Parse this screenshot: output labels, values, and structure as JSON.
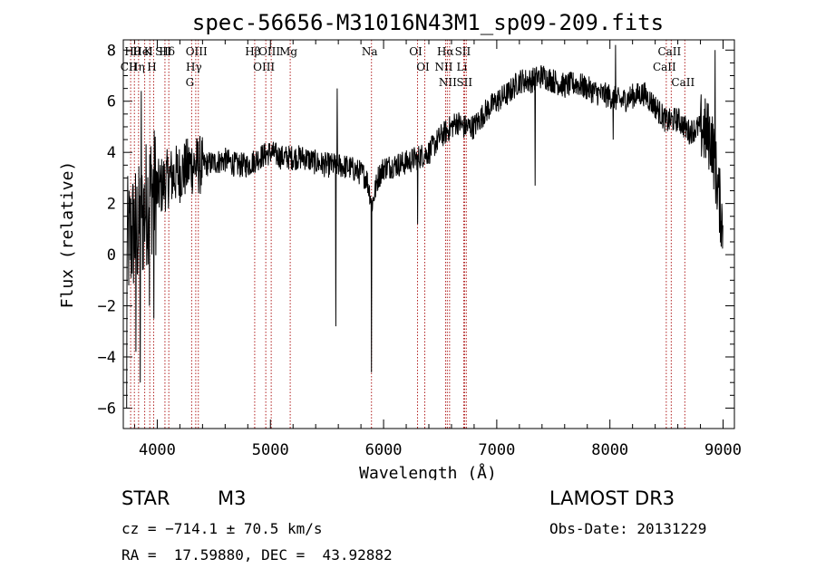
{
  "chart_data": {
    "type": "line",
    "title": "spec-56656-M31016N43M1_sp09-209.fits",
    "xlabel": "Wavelength (Å)",
    "ylabel": "Flux (relative)",
    "xlim": [
      3700,
      9100
    ],
    "ylim": [
      -6.8,
      8.4
    ],
    "x_ticks": [
      4000,
      5000,
      6000,
      7000,
      8000,
      9000
    ],
    "y_ticks": [
      -6,
      -4,
      -2,
      0,
      2,
      4,
      6,
      8
    ],
    "line_color": "#000000",
    "marker_color": "#b22222",
    "spectrum_anchors": {
      "x": [
        3700,
        3750,
        3800,
        3850,
        3900,
        3950,
        4000,
        4100,
        4200,
        4300,
        4400,
        4500,
        4600,
        4700,
        4800,
        4900,
        5000,
        5100,
        5200,
        5300,
        5400,
        5500,
        5600,
        5700,
        5800,
        5850,
        5900,
        5950,
        6000,
        6100,
        6200,
        6300,
        6400,
        6500,
        6550,
        6600,
        6650,
        6700,
        6800,
        6900,
        7000,
        7100,
        7200,
        7300,
        7400,
        7500,
        7600,
        7700,
        7800,
        7900,
        8000,
        8100,
        8200,
        8300,
        8400,
        8500,
        8600,
        8700,
        8800,
        8900,
        9000
      ],
      "y": [
        0.5,
        0.5,
        1.0,
        1.0,
        2.0,
        2.5,
        2.5,
        3.0,
        3.2,
        3.5,
        3.5,
        3.6,
        3.7,
        3.5,
        3.5,
        3.8,
        4.0,
        3.8,
        3.8,
        3.8,
        3.6,
        3.5,
        3.5,
        3.4,
        3.2,
        3.0,
        2.0,
        3.0,
        3.4,
        3.5,
        3.6,
        3.8,
        4.0,
        4.6,
        4.8,
        5.0,
        5.2,
        5.0,
        5.0,
        5.6,
        6.0,
        6.3,
        6.8,
        6.8,
        7.0,
        6.8,
        6.6,
        6.7,
        6.5,
        6.3,
        6.2,
        6.0,
        6.2,
        6.3,
        5.8,
        5.2,
        5.3,
        4.8,
        5.0,
        4.5,
        1.0
      ]
    },
    "spectrum_spikes": [
      {
        "x": 3730,
        "y": -6.0
      },
      {
        "x": 3810,
        "y": -3.8
      },
      {
        "x": 3850,
        "y": -5.0
      },
      {
        "x": 3860,
        "y": 6.4
      },
      {
        "x": 3930,
        "y": -2.0
      },
      {
        "x": 3970,
        "y": -2.5
      },
      {
        "x": 5577,
        "y": -2.8
      },
      {
        "x": 5590,
        "y": 6.5
      },
      {
        "x": 5893,
        "y": -4.6
      },
      {
        "x": 6300,
        "y": 1.2
      },
      {
        "x": 7340,
        "y": 2.7
      },
      {
        "x": 8050,
        "y": 8.2
      },
      {
        "x": 8030,
        "y": 4.5
      },
      {
        "x": 8930,
        "y": 8.0
      },
      {
        "x": 9000,
        "y": 0.0
      }
    ],
    "spectral_lines": [
      {
        "labels": [
          "Hθ",
          "CII"
        ],
        "x": [
          3798,
          3765
        ]
      },
      {
        "labels": [
          "K"
        ],
        "x": [
          3934
        ]
      },
      {
        "labels": [
          "HeI",
          "Hη"
        ],
        "x": [
          3889,
          3835
        ]
      },
      {
        "labels": [
          "SII",
          "H"
        ],
        "x": [
          4068,
          3968
        ]
      },
      {
        "labels": [
          "Hδ"
        ],
        "x": [
          4102
        ]
      },
      {
        "labels": [
          "OIII",
          "Hγ",
          "G"
        ],
        "x": [
          4363,
          4340,
          4304
        ]
      },
      {
        "labels": [
          "Hβ"
        ],
        "x": [
          4861
        ]
      },
      {
        "labels": [
          "OIII",
          "OIII"
        ],
        "x": [
          5007,
          4959
        ]
      },
      {
        "labels": [
          "Mg"
        ],
        "x": [
          5175
        ]
      },
      {
        "labels": [
          "Na"
        ],
        "x": [
          5893
        ]
      },
      {
        "labels": [
          "OI",
          "OI"
        ],
        "x": [
          6300,
          6364
        ]
      },
      {
        "labels": [
          "Hα",
          "NII",
          "NII"
        ],
        "x": [
          6563,
          6548,
          6583
        ]
      },
      {
        "labels": [
          "SII",
          "Li",
          "SII"
        ],
        "x": [
          6716,
          6708,
          6731
        ]
      },
      {
        "labels": [
          "CaII",
          "CaII",
          "CaII"
        ],
        "x": [
          8542,
          8498,
          8662
        ]
      }
    ]
  },
  "info": {
    "object_class": "STAR",
    "subclass": "M3",
    "survey": "LAMOST DR3",
    "velocity_text": "cz = −714.1 ± 70.5 km/s",
    "obs_date_text": "Obs-Date: 20131229",
    "coords_text": "RA =  17.59880, DEC =  43.92882"
  }
}
